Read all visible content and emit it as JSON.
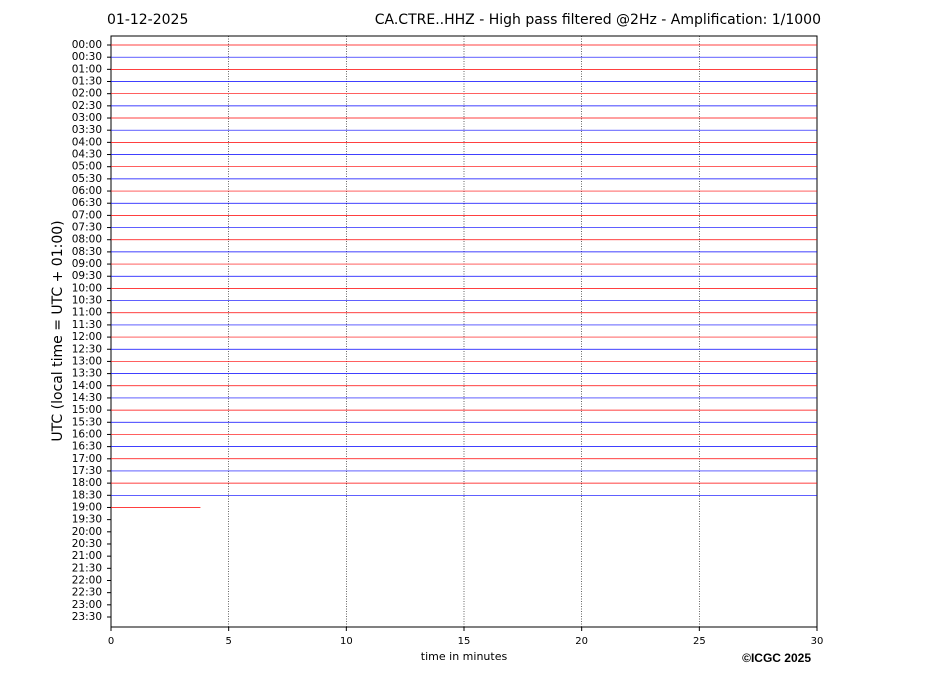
{
  "chart_data": {
    "type": "helicorder",
    "title_left": "01-12-2025",
    "title": "CA.CTRE..HHZ - High pass filtered @2Hz - Amplification: 1/1000",
    "y_label": "UTC (local time = UTC + 01:00)",
    "x_label": "time in minutes",
    "credit": "©ICGC 2025",
    "categories": [
      "00:00",
      "00:30",
      "01:00",
      "01:30",
      "02:00",
      "02:30",
      "03:00",
      "03:30",
      "04:00",
      "04:30",
      "05:00",
      "05:30",
      "06:00",
      "06:30",
      "07:00",
      "07:30",
      "08:00",
      "08:30",
      "09:00",
      "09:30",
      "10:00",
      "10:30",
      "11:00",
      "11:30",
      "12:00",
      "12:30",
      "13:00",
      "13:30",
      "14:00",
      "14:30",
      "15:00",
      "15:30",
      "16:00",
      "16:30",
      "17:00",
      "17:30",
      "18:00",
      "18:30",
      "19:00",
      "19:30",
      "20:00",
      "20:30",
      "21:00",
      "21:30",
      "22:00",
      "22:30",
      "23:00",
      "23:30"
    ],
    "values": [
      30,
      30,
      30,
      30,
      30,
      30,
      30,
      30,
      30,
      30,
      30,
      30,
      30,
      30,
      30,
      30,
      30,
      30,
      30,
      30,
      30,
      30,
      30,
      30,
      30,
      30,
      30,
      30,
      30,
      30,
      30,
      30,
      30,
      30,
      30,
      30,
      30,
      30,
      3.8,
      null,
      null,
      null,
      null,
      null,
      null,
      null,
      null,
      null
    ],
    "colors": [
      "#ff0000",
      "#0000ff"
    ],
    "xlim": [
      0,
      30
    ],
    "xticks": [
      0,
      5,
      10,
      15,
      20,
      25,
      30
    ],
    "grid": true
  }
}
